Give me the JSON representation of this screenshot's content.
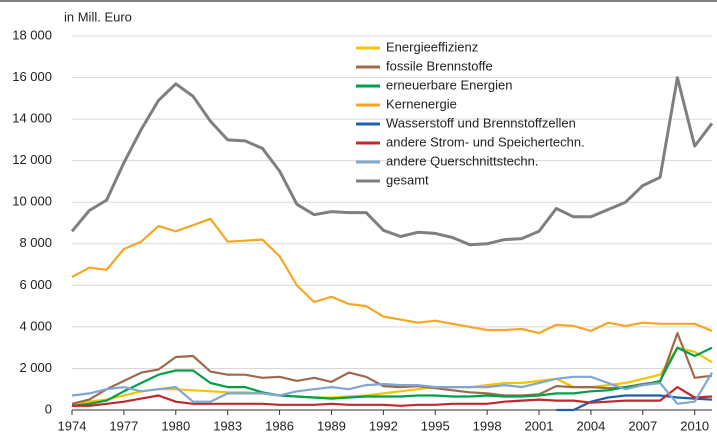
{
  "chart_data": {
    "type": "line",
    "y_label": "in Mill. Euro",
    "x": [
      1974,
      1975,
      1976,
      1977,
      1978,
      1979,
      1980,
      1981,
      1982,
      1983,
      1984,
      1985,
      1986,
      1987,
      1988,
      1989,
      1990,
      1991,
      1992,
      1993,
      1994,
      1995,
      1996,
      1997,
      1998,
      1999,
      2000,
      2001,
      2002,
      2003,
      2004,
      2005,
      2006,
      2007,
      2008,
      2009,
      2010,
      2011
    ],
    "xlim": [
      1974,
      2011
    ],
    "xticks": [
      1974,
      1977,
      1980,
      1983,
      1986,
      1989,
      1992,
      1995,
      1998,
      2001,
      2004,
      2007,
      2010
    ],
    "ylim": [
      0,
      18000
    ],
    "yticks": [
      {
        "value": 0,
        "label": "0"
      },
      {
        "value": 2000,
        "label": "2 000"
      },
      {
        "value": 4000,
        "label": "4 000"
      },
      {
        "value": 6000,
        "label": "6 000"
      },
      {
        "value": 8000,
        "label": "8 000"
      },
      {
        "value": 10000,
        "label": "10 000"
      },
      {
        "value": 12000,
        "label": "12 000"
      },
      {
        "value": 14000,
        "label": "14 000"
      },
      {
        "value": 16000,
        "label": "16 000"
      },
      {
        "value": 18000,
        "label": "18 000"
      }
    ],
    "grid": true,
    "legend": "top",
    "series": [
      {
        "name": "Energieeffizienz",
        "color": "#f5c400",
        "values": [
          300,
          400,
          500,
          700,
          900,
          1000,
          1000,
          950,
          900,
          850,
          850,
          800,
          700,
          650,
          600,
          600,
          650,
          700,
          800,
          900,
          1000,
          1100,
          1100,
          1100,
          1200,
          1300,
          1300,
          1400,
          1500,
          1100,
          1100,
          1200,
          1300,
          1500,
          1700,
          3000,
          2800,
          2300
        ]
      },
      {
        "name": "fossile Brennstoffe",
        "color": "#a0694b",
        "values": [
          300,
          500,
          1000,
          1400,
          1800,
          1950,
          2550,
          2600,
          1850,
          1700,
          1700,
          1550,
          1600,
          1400,
          1550,
          1350,
          1800,
          1600,
          1150,
          1100,
          1150,
          1050,
          950,
          850,
          800,
          700,
          700,
          750,
          1150,
          1100,
          1100,
          1050,
          1100,
          1250,
          1350,
          3700,
          1550,
          1650
        ]
      },
      {
        "name": "erneuerbare Energien",
        "color": "#00a04a",
        "values": [
          200,
          300,
          450,
          900,
          1300,
          1700,
          1900,
          1900,
          1300,
          1100,
          1100,
          850,
          700,
          650,
          600,
          550,
          600,
          650,
          650,
          650,
          700,
          700,
          650,
          650,
          700,
          650,
          650,
          700,
          800,
          800,
          900,
          950,
          1100,
          1200,
          1400,
          3000,
          2600,
          3000
        ]
      },
      {
        "name": "Kernenergie",
        "color": "#f5a623",
        "values": [
          6400,
          6850,
          6750,
          7750,
          8100,
          8850,
          8600,
          8900,
          9200,
          8100,
          8150,
          8200,
          7400,
          6000,
          5200,
          5450,
          5100,
          5000,
          4500,
          4350,
          4200,
          4300,
          4150,
          4000,
          3850,
          3850,
          3900,
          3700,
          4100,
          4050,
          3800,
          4200,
          4050,
          4200,
          4150,
          4150,
          4150,
          3800
        ]
      },
      {
        "name": "Wasserstoff und Brennstoffzellen",
        "color": "#1f5fa8",
        "values": [
          null,
          null,
          null,
          null,
          null,
          null,
          null,
          null,
          null,
          null,
          null,
          null,
          null,
          null,
          null,
          null,
          null,
          null,
          null,
          null,
          null,
          null,
          null,
          null,
          null,
          null,
          null,
          null,
          0,
          0,
          400,
          600,
          700,
          700,
          700,
          600,
          550,
          500
        ]
      },
      {
        "name": "andere Strom- und Speichertechn.",
        "color": "#c0282d",
        "values": [
          200,
          200,
          300,
          400,
          550,
          700,
          400,
          300,
          300,
          300,
          300,
          300,
          250,
          250,
          250,
          300,
          250,
          250,
          250,
          200,
          250,
          250,
          300,
          300,
          300,
          400,
          450,
          500,
          450,
          450,
          350,
          400,
          450,
          450,
          450,
          1100,
          600,
          650
        ]
      },
      {
        "name": "andere Querschnittstechn.",
        "color": "#7fa7d0",
        "values": [
          700,
          800,
          1000,
          1100,
          900,
          1000,
          1100,
          400,
          400,
          800,
          800,
          800,
          700,
          900,
          1000,
          1100,
          1000,
          1200,
          1250,
          1200,
          1200,
          1100,
          1100,
          1100,
          1100,
          1200,
          1100,
          1300,
          1500,
          1600,
          1600,
          1300,
          1000,
          1200,
          1300,
          300,
          400,
          1800
        ]
      },
      {
        "name": "gesamt",
        "color": "#7f7f7f",
        "values": [
          8600,
          9600,
          10100,
          11900,
          13500,
          14900,
          15700,
          15100,
          13900,
          13000,
          12950,
          12600,
          11500,
          9900,
          9400,
          9550,
          9500,
          9500,
          8650,
          8350,
          8550,
          8500,
          8300,
          7950,
          8000,
          8200,
          8250,
          8600,
          9700,
          9300,
          9300,
          9650,
          10000,
          10800,
          11200,
          16000,
          12700,
          13800
        ]
      }
    ]
  }
}
